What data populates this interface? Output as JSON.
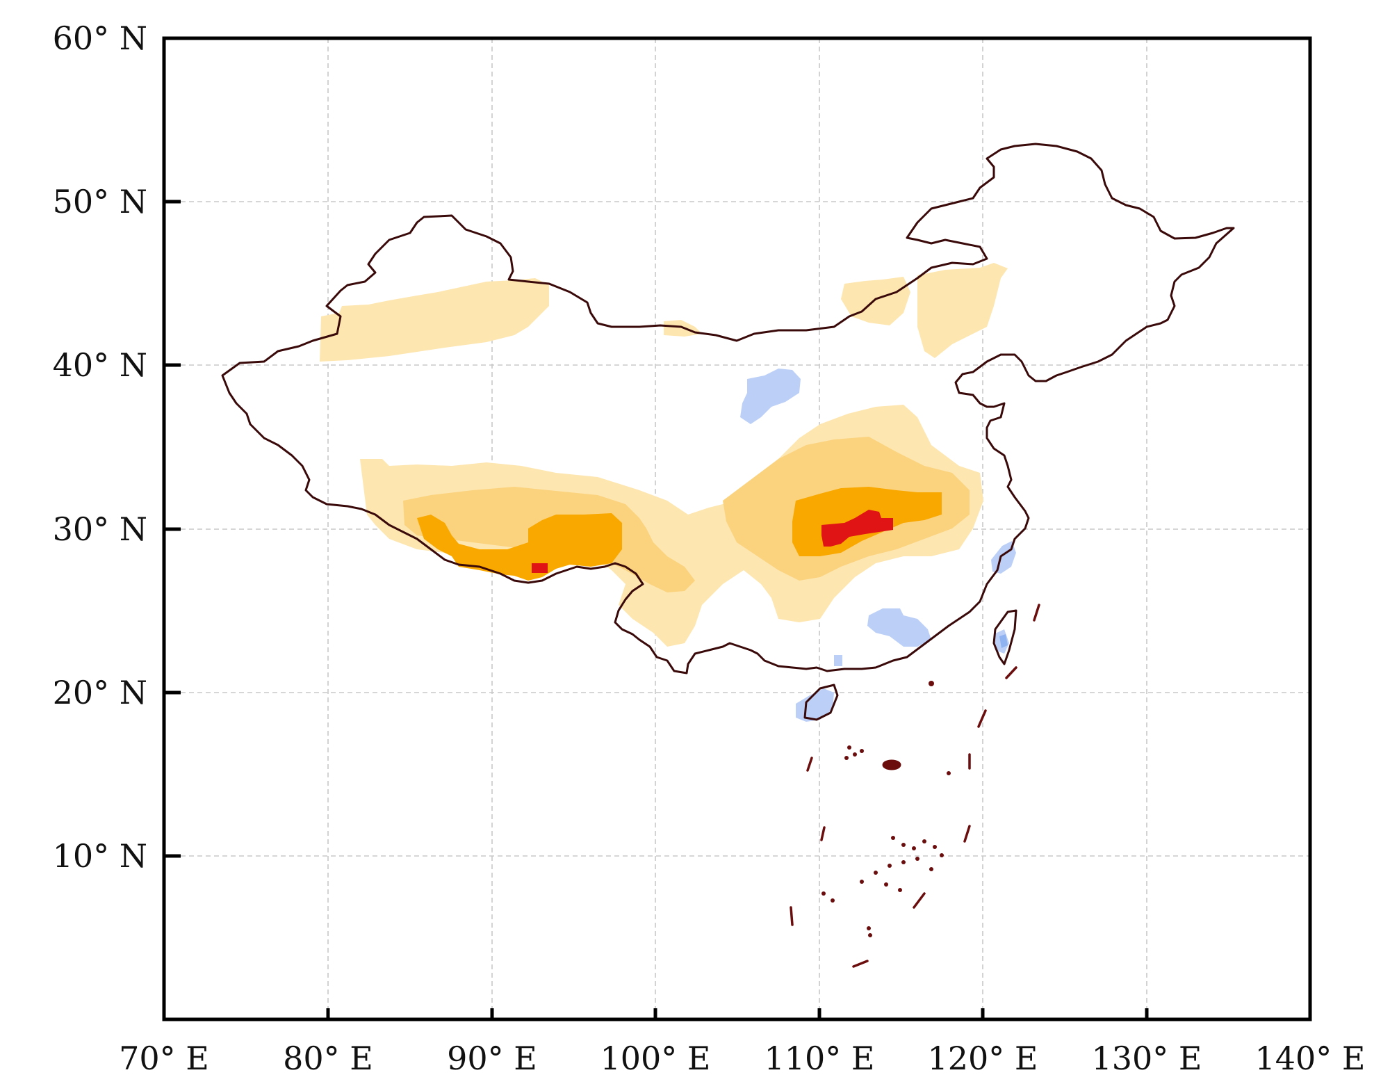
{
  "map": {
    "lon_range": [
      70,
      140
    ],
    "lat_range": [
      0,
      60
    ],
    "x_ticks": [
      {
        "value": 70,
        "label": "70° E"
      },
      {
        "value": 80,
        "label": "80° E"
      },
      {
        "value": 90,
        "label": "90° E"
      },
      {
        "value": 100,
        "label": "100° E"
      },
      {
        "value": 110,
        "label": "110° E"
      },
      {
        "value": 120,
        "label": "120° E"
      },
      {
        "value": 130,
        "label": "130° E"
      },
      {
        "value": 140,
        "label": "140° E"
      }
    ],
    "y_ticks": [
      {
        "value": 10,
        "label": "10° N"
      },
      {
        "value": 20,
        "label": "20° N"
      },
      {
        "value": 30,
        "label": "30° N"
      },
      {
        "value": 40,
        "label": "40° N"
      },
      {
        "value": 50,
        "label": "50° N"
      },
      {
        "value": 60,
        "label": "60° N"
      }
    ],
    "grid": true,
    "colors": {
      "border": "#3a0a0a",
      "islands": "#6b0d0d",
      "level_1_light_orange": "#fde6b0",
      "level_2_orange": "#fbd37f",
      "level_3_dark_orange": "#f9a800",
      "level_4_red": "#e01414",
      "negative_light_blue": "#bcd0f7",
      "negative_blue": "#8fb2f0"
    }
  }
}
